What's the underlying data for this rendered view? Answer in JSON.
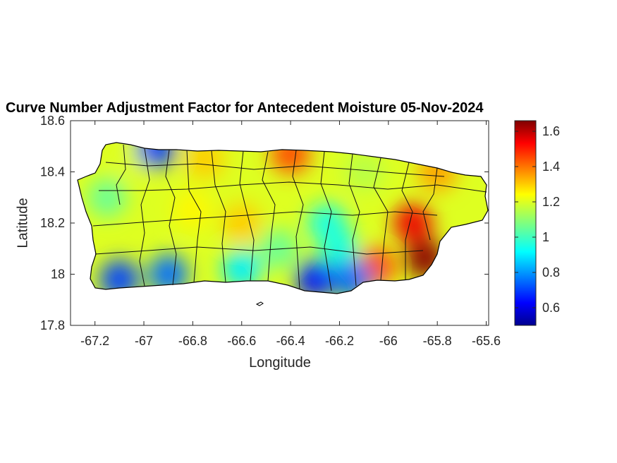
{
  "title": "Curve Number Adjustment Factor for Antecedent Moisture 05-Nov-2024",
  "chart_data": {
    "type": "heatmap",
    "title": "Curve Number Adjustment Factor for Antecedent Moisture 05-Nov-2024",
    "xlabel": "Longitude",
    "ylabel": "Latitude",
    "xlim": [
      -67.3,
      -65.59
    ],
    "ylim": [
      17.8,
      18.6
    ],
    "xticks": [
      -67.2,
      -67,
      -66.8,
      -66.6,
      -66.4,
      -66.2,
      -66,
      -65.8,
      -65.6
    ],
    "xtick_labels": [
      "-67.2",
      "-67",
      "-66.8",
      "-66.6",
      "-66.4",
      "-66.2",
      "-66",
      "-65.8",
      "-65.6"
    ],
    "yticks": [
      17.8,
      18,
      18.2,
      18.4,
      18.6
    ],
    "ytick_labels": [
      "17.8",
      "18",
      "18.2",
      "18.4",
      "18.6"
    ],
    "colormap": "jet",
    "colorbar": {
      "range": [
        0.5,
        1.66
      ],
      "ticks": [
        0.6,
        0.8,
        1,
        1.2,
        1.4,
        1.6
      ],
      "tick_labels": [
        "0.6",
        "0.8",
        "1",
        "1.2",
        "1.4",
        "1.6"
      ]
    },
    "grid": false,
    "regions": [
      {
        "lon": -67.05,
        "lat": 18.45,
        "value": 1.2
      },
      {
        "lon": -66.95,
        "lat": 18.49,
        "value": 0.7
      },
      {
        "lon": -66.75,
        "lat": 18.45,
        "value": 1.3
      },
      {
        "lon": -66.4,
        "lat": 18.47,
        "value": 1.45
      },
      {
        "lon": -66.1,
        "lat": 18.4,
        "value": 1.15
      },
      {
        "lon": -65.8,
        "lat": 18.4,
        "value": 1.35
      },
      {
        "lon": -67.15,
        "lat": 18.3,
        "value": 1.05
      },
      {
        "lon": -66.8,
        "lat": 18.25,
        "value": 1.25
      },
      {
        "lon": -66.6,
        "lat": 18.2,
        "value": 1.3
      },
      {
        "lon": -66.25,
        "lat": 18.2,
        "value": 0.95
      },
      {
        "lon": -66.2,
        "lat": 18.1,
        "value": 0.95
      },
      {
        "lon": -65.9,
        "lat": 18.2,
        "value": 1.55
      },
      {
        "lon": -65.85,
        "lat": 18.06,
        "value": 1.65
      },
      {
        "lon": -66.05,
        "lat": 18.03,
        "value": 1.45
      },
      {
        "lon": -67.1,
        "lat": 17.98,
        "value": 0.7
      },
      {
        "lon": -66.9,
        "lat": 18.0,
        "value": 0.75
      },
      {
        "lon": -66.6,
        "lat": 18.02,
        "value": 0.9
      },
      {
        "lon": -66.3,
        "lat": 17.98,
        "value": 0.65
      },
      {
        "lon": -66.15,
        "lat": 17.98,
        "value": 0.75
      },
      {
        "lon": -66.45,
        "lat": 18.1,
        "value": 1.05
      }
    ]
  }
}
